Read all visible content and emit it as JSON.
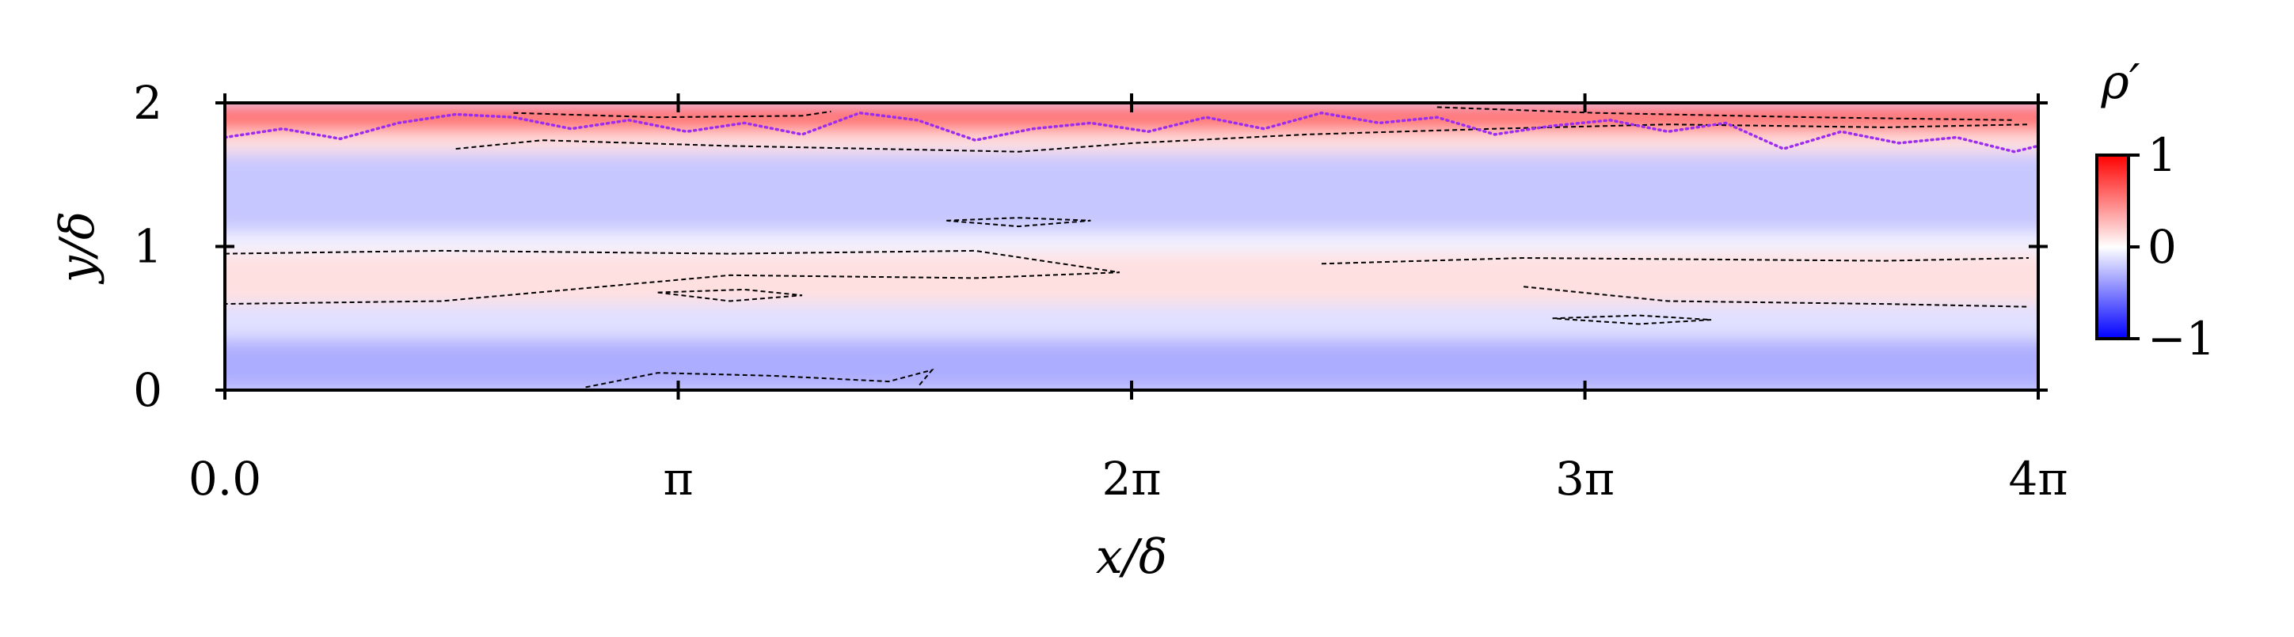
{
  "chart_data": {
    "type": "heatmap",
    "title": "",
    "xlabel": "x/δ",
    "ylabel": "y/δ",
    "xlim": [
      0,
      12.566
    ],
    "ylim": [
      0,
      2
    ],
    "x_ticks": [
      {
        "value": 0,
        "label": "0.0"
      },
      {
        "value": 3.1416,
        "label": "π"
      },
      {
        "value": 6.2832,
        "label": "2π"
      },
      {
        "value": 9.4248,
        "label": "3π"
      },
      {
        "value": 12.566,
        "label": "4π"
      }
    ],
    "y_ticks": [
      {
        "value": 0,
        "label": "0"
      },
      {
        "value": 1,
        "label": "1"
      },
      {
        "value": 2,
        "label": "2"
      }
    ],
    "colorbar": {
      "title": "ρ′",
      "range": [
        -1,
        1
      ],
      "colormap": "bwr",
      "ticks": [
        {
          "value": 1,
          "label": "1"
        },
        {
          "value": 0,
          "label": "0"
        },
        {
          "value": -1,
          "label": "−1"
        }
      ],
      "colors": {
        "low": "#0000ff",
        "mid": "#ffffff",
        "high": "#ff0000"
      }
    },
    "field_bands": [
      {
        "y_range": [
          1.8,
          2.0
        ],
        "value": 0.55
      },
      {
        "y_range": [
          1.65,
          1.8
        ],
        "value": 0.12
      },
      {
        "y_range": [
          1.1,
          1.65
        ],
        "value": -0.22
      },
      {
        "y_range": [
          0.95,
          1.1
        ],
        "value": -0.05
      },
      {
        "y_range": [
          0.6,
          0.95
        ],
        "value": 0.12
      },
      {
        "y_range": [
          0.35,
          0.6
        ],
        "value": -0.12
      },
      {
        "y_range": [
          0.0,
          0.35
        ],
        "value": -0.32
      }
    ],
    "contours": [
      {
        "name": "contour-upper",
        "style": "dashed",
        "color": "#000000",
        "points": [
          [
            1.6,
            1.68
          ],
          [
            2.2,
            1.74
          ],
          [
            3.5,
            1.7
          ],
          [
            5.5,
            1.66
          ],
          [
            6.3,
            1.72
          ],
          [
            7.5,
            1.78
          ],
          [
            8.8,
            1.82
          ],
          [
            10.0,
            1.85
          ],
          [
            11.5,
            1.83
          ],
          [
            12.5,
            1.85
          ]
        ]
      },
      {
        "name": "contour-top-left",
        "style": "dashed",
        "color": "#000000",
        "points": [
          [
            2.0,
            1.93
          ],
          [
            3.0,
            1.9
          ],
          [
            4.0,
            1.91
          ],
          [
            4.2,
            1.94
          ]
        ]
      },
      {
        "name": "contour-top-right",
        "style": "dashed",
        "color": "#000000",
        "points": [
          [
            8.4,
            1.97
          ],
          [
            9.5,
            1.93
          ],
          [
            11.0,
            1.9
          ],
          [
            12.4,
            1.88
          ]
        ]
      },
      {
        "name": "contour-mid-upper",
        "style": "dashed",
        "color": "#000000",
        "points": [
          [
            0,
            0.95
          ],
          [
            1.5,
            0.97
          ],
          [
            3.5,
            0.95
          ],
          [
            5.2,
            0.97
          ],
          [
            6.2,
            0.82
          ],
          [
            5.2,
            0.78
          ],
          [
            3.5,
            0.8
          ],
          [
            1.5,
            0.62
          ],
          [
            0,
            0.6
          ]
        ]
      },
      {
        "name": "contour-mid-right",
        "style": "dashed",
        "color": "#000000",
        "points": [
          [
            7.6,
            0.88
          ],
          [
            9.0,
            0.92
          ],
          [
            11.5,
            0.9
          ],
          [
            12.5,
            0.92
          ]
        ]
      },
      {
        "name": "contour-mid-right-lower",
        "style": "dashed",
        "color": "#000000",
        "points": [
          [
            9.0,
            0.72
          ],
          [
            10.0,
            0.62
          ],
          [
            11.5,
            0.6
          ],
          [
            12.5,
            0.58
          ]
        ]
      },
      {
        "name": "contour-bottom",
        "style": "dashed",
        "color": "#000000",
        "points": [
          [
            2.5,
            0.02
          ],
          [
            3.0,
            0.12
          ],
          [
            3.8,
            0.1
          ],
          [
            4.6,
            0.06
          ],
          [
            4.9,
            0.14
          ],
          [
            4.8,
            0.02
          ]
        ]
      },
      {
        "name": "contour-island-a",
        "style": "dashed",
        "color": "#000000",
        "points": [
          [
            5.0,
            1.18
          ],
          [
            5.5,
            1.2
          ],
          [
            6.0,
            1.18
          ],
          [
            5.5,
            1.14
          ],
          [
            5.0,
            1.18
          ]
        ]
      },
      {
        "name": "contour-island-b",
        "style": "dashed",
        "color": "#000000",
        "points": [
          [
            9.2,
            0.5
          ],
          [
            9.8,
            0.52
          ],
          [
            10.3,
            0.49
          ],
          [
            9.8,
            0.46
          ],
          [
            9.2,
            0.5
          ]
        ]
      },
      {
        "name": "contour-island-c",
        "style": "dashed",
        "color": "#000000",
        "points": [
          [
            3.0,
            0.68
          ],
          [
            3.6,
            0.7
          ],
          [
            4.0,
            0.66
          ],
          [
            3.5,
            0.62
          ],
          [
            3.0,
            0.68
          ]
        ]
      }
    ],
    "interface_line": {
      "name": "interface-line",
      "style": "dotted",
      "color": "#9b2cf0",
      "points": [
        [
          0.0,
          1.76
        ],
        [
          0.4,
          1.82
        ],
        [
          0.8,
          1.75
        ],
        [
          1.2,
          1.86
        ],
        [
          1.6,
          1.92
        ],
        [
          2.0,
          1.9
        ],
        [
          2.4,
          1.82
        ],
        [
          2.8,
          1.88
        ],
        [
          3.2,
          1.8
        ],
        [
          3.6,
          1.86
        ],
        [
          4.0,
          1.78
        ],
        [
          4.4,
          1.93
        ],
        [
          4.8,
          1.88
        ],
        [
          5.2,
          1.74
        ],
        [
          5.6,
          1.82
        ],
        [
          6.0,
          1.86
        ],
        [
          6.4,
          1.8
        ],
        [
          6.8,
          1.9
        ],
        [
          7.2,
          1.82
        ],
        [
          7.6,
          1.93
        ],
        [
          8.0,
          1.86
        ],
        [
          8.4,
          1.9
        ],
        [
          8.8,
          1.78
        ],
        [
          9.2,
          1.84
        ],
        [
          9.6,
          1.88
        ],
        [
          10.0,
          1.8
        ],
        [
          10.4,
          1.86
        ],
        [
          10.8,
          1.68
        ],
        [
          11.2,
          1.8
        ],
        [
          11.6,
          1.72
        ],
        [
          12.0,
          1.76
        ],
        [
          12.4,
          1.66
        ],
        [
          12.566,
          1.7
        ]
      ]
    }
  }
}
